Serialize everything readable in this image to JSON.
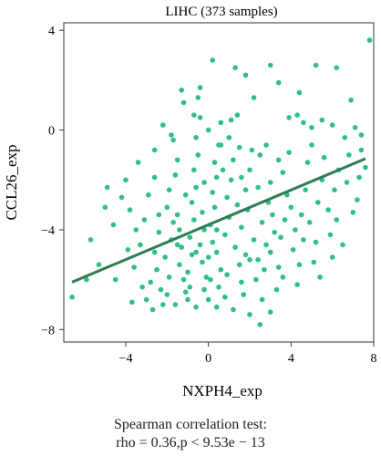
{
  "chart_data": {
    "type": "scatter",
    "title": "LIHC (373 samples)",
    "xlabel": "NXPH4_exp",
    "ylabel": "CCL26_exp",
    "xlim": [
      -7,
      8
    ],
    "ylim": [
      -8.5,
      4.3
    ],
    "xticks": [
      "−4",
      "0",
      "4",
      "8"
    ],
    "xtick_values": [
      -4,
      0,
      4,
      8
    ],
    "yticks": [
      "4",
      "0",
      "−4",
      "−8"
    ],
    "ytick_values": [
      4,
      0,
      -4,
      -8
    ],
    "grid": false,
    "point_color": "#2fbf86",
    "line_color": "#2e7d52",
    "fit_line": {
      "x": [
        -6.6,
        7.6
      ],
      "y": [
        -6.1,
        -1.15
      ]
    },
    "annotation": [
      "Spearman correlation test:",
      "rho = 0.36,p < 9.53e − 13"
    ],
    "points": [
      [
        -6.6,
        -6.7
      ],
      [
        -5.9,
        -6.0
      ],
      [
        -5.3,
        -5.4
      ],
      [
        -4.6,
        -3.8
      ],
      [
        -4.9,
        -2.3
      ],
      [
        -4.0,
        -2.0
      ],
      [
        -3.8,
        -3.2
      ],
      [
        -3.5,
        -4.0
      ],
      [
        -3.3,
        -4.6
      ],
      [
        -3.6,
        -5.5
      ],
      [
        -3.2,
        -6.3
      ],
      [
        -3.0,
        -6.8
      ],
      [
        -2.8,
        -6.1
      ],
      [
        -3.1,
        -3.6
      ],
      [
        -2.9,
        -2.6
      ],
      [
        -2.6,
        -1.9
      ],
      [
        -2.4,
        -4.1
      ],
      [
        -2.6,
        -4.9
      ],
      [
        -2.5,
        -5.6
      ],
      [
        -2.3,
        -6.4
      ],
      [
        -2.2,
        -7.0
      ],
      [
        -2.0,
        -6.6
      ],
      [
        -1.9,
        -5.9
      ],
      [
        -2.1,
        -5.1
      ],
      [
        -1.8,
        -4.4
      ],
      [
        -1.7,
        -3.7
      ],
      [
        -2.0,
        -3.1
      ],
      [
        -1.9,
        -2.4
      ],
      [
        -1.6,
        -1.8
      ],
      [
        -1.5,
        -1.2
      ],
      [
        -1.7,
        -0.4
      ],
      [
        -1.2,
        1.1
      ],
      [
        -1.5,
        -3.4
      ],
      [
        -1.4,
        -4.0
      ],
      [
        -1.3,
        -4.7
      ],
      [
        -1.4,
        -5.4
      ],
      [
        -1.2,
        -6.0
      ],
      [
        -1.1,
        -6.5
      ],
      [
        -1.0,
        -6.8
      ],
      [
        -0.9,
        -6.3
      ],
      [
        -1.0,
        -5.7
      ],
      [
        -0.8,
        -5.0
      ],
      [
        -0.9,
        -4.3
      ],
      [
        -0.7,
        -3.6
      ],
      [
        -0.8,
        -2.9
      ],
      [
        -0.6,
        -2.3
      ],
      [
        -0.7,
        -1.6
      ],
      [
        -0.5,
        -1.0
      ],
      [
        -0.6,
        -0.3
      ],
      [
        -0.4,
        0.5
      ],
      [
        -0.5,
        1.3
      ],
      [
        -0.3,
        -3.3
      ],
      [
        -0.2,
        -4.0
      ],
      [
        -0.4,
        -4.6
      ],
      [
        -0.3,
        -5.3
      ],
      [
        -0.1,
        -5.9
      ],
      [
        -0.2,
        -6.4
      ],
      [
        0.0,
        -6.8
      ],
      [
        0.1,
        -6.0
      ],
      [
        0.0,
        -5.1
      ],
      [
        0.2,
        -4.5
      ],
      [
        0.1,
        -3.8
      ],
      [
        0.3,
        -3.1
      ],
      [
        0.2,
        -2.5
      ],
      [
        0.4,
        -1.9
      ],
      [
        0.3,
        -1.3
      ],
      [
        0.5,
        -0.6
      ],
      [
        0.6,
        0.3
      ],
      [
        0.4,
        -4.9
      ],
      [
        0.6,
        -5.6
      ],
      [
        0.5,
        -6.3
      ],
      [
        0.8,
        -6.7
      ],
      [
        0.9,
        -5.8
      ],
      [
        0.8,
        -4.2
      ],
      [
        1.0,
        -3.5
      ],
      [
        0.9,
        -2.7
      ],
      [
        1.1,
        -2.0
      ],
      [
        1.2,
        -1.2
      ],
      [
        1.0,
        -0.3
      ],
      [
        1.4,
        0.6
      ],
      [
        1.3,
        -4.7
      ],
      [
        1.5,
        -5.4
      ],
      [
        1.6,
        -6.1
      ],
      [
        1.7,
        -6.6
      ],
      [
        1.8,
        -5.0
      ],
      [
        1.6,
        -3.9
      ],
      [
        1.9,
        -3.2
      ],
      [
        1.8,
        -2.4
      ],
      [
        2.0,
        -1.6
      ],
      [
        2.1,
        -0.8
      ],
      [
        2.2,
        -4.4
      ],
      [
        2.4,
        -5.2
      ],
      [
        2.3,
        -6.0
      ],
      [
        2.6,
        -6.8
      ],
      [
        2.5,
        -7.8
      ],
      [
        2.7,
        -5.6
      ],
      [
        2.8,
        -4.6
      ],
      [
        2.6,
        -3.7
      ],
      [
        2.9,
        -2.9
      ],
      [
        3.0,
        -2.1
      ],
      [
        3.1,
        -3.4
      ],
      [
        3.2,
        -4.1
      ],
      [
        3.0,
        -4.9
      ],
      [
        3.4,
        -5.5
      ],
      [
        3.3,
        -6.4
      ],
      [
        3.6,
        -5.9
      ],
      [
        3.5,
        -4.3
      ],
      [
        3.7,
        -3.6
      ],
      [
        3.8,
        -2.6
      ],
      [
        3.6,
        -1.7
      ],
      [
        3.9,
        -0.9
      ],
      [
        4.0,
        -3.1
      ],
      [
        4.2,
        -4.0
      ],
      [
        4.1,
        -4.8
      ],
      [
        4.4,
        -5.4
      ],
      [
        4.3,
        -6.2
      ],
      [
        4.6,
        -4.4
      ],
      [
        4.5,
        -3.4
      ],
      [
        4.7,
        -2.4
      ],
      [
        4.8,
        -1.3
      ],
      [
        5.0,
        -0.6
      ],
      [
        4.9,
        -3.7
      ],
      [
        5.2,
        -4.5
      ],
      [
        5.1,
        -5.3
      ],
      [
        5.4,
        -5.9
      ],
      [
        5.3,
        -2.9
      ],
      [
        5.5,
        -2.0
      ],
      [
        5.6,
        -1.1
      ],
      [
        5.8,
        -3.2
      ],
      [
        5.9,
        -4.2
      ],
      [
        6.0,
        -5.1
      ],
      [
        6.1,
        -2.4
      ],
      [
        6.3,
        -1.6
      ],
      [
        6.2,
        -3.6
      ],
      [
        6.5,
        -4.6
      ],
      [
        6.7,
        -2.1
      ],
      [
        6.8,
        -1.0
      ],
      [
        7.0,
        -3.3
      ],
      [
        7.2,
        -2.8
      ],
      [
        7.3,
        -1.9
      ],
      [
        7.4,
        -0.8
      ],
      [
        7.6,
        -1.5
      ],
      [
        3.9,
        0.5
      ],
      [
        4.3,
        0.6
      ],
      [
        4.6,
        0.3
      ],
      [
        5.0,
        0.1
      ],
      [
        5.5,
        0.4
      ],
      [
        6.0,
        0.2
      ],
      [
        6.6,
        -0.3
      ],
      [
        7.1,
        0.1
      ],
      [
        7.8,
        3.6
      ],
      [
        7.4,
        -0.2
      ],
      [
        6.9,
        1.2
      ],
      [
        6.2,
        2.5
      ],
      [
        5.2,
        2.6
      ],
      [
        4.4,
        1.5
      ],
      [
        3.4,
        1.9
      ],
      [
        3.0,
        2.6
      ],
      [
        1.3,
        2.5
      ],
      [
        1.8,
        2.2
      ],
      [
        2.2,
        1.3
      ],
      [
        0.2,
        2.8
      ],
      [
        -1.3,
        1.6
      ],
      [
        -0.4,
        1.7
      ],
      [
        -0.7,
        0.6
      ],
      [
        -2.2,
        0.2
      ],
      [
        0.6,
        -0.6
      ],
      [
        1.5,
        -0.7
      ],
      [
        2.8,
        -0.6
      ],
      [
        3.4,
        -1.2
      ],
      [
        -2.6,
        -0.8
      ],
      [
        -3.4,
        -1.3
      ],
      [
        -4.2,
        -2.7
      ],
      [
        -5.0,
        -3.1
      ],
      [
        -3.9,
        -4.8
      ],
      [
        -4.5,
        -6.0
      ],
      [
        -3.7,
        -6.9
      ],
      [
        -2.7,
        -7.2
      ],
      [
        -1.6,
        -7.0
      ],
      [
        -0.6,
        -7.1
      ],
      [
        0.4,
        -7.1
      ],
      [
        1.2,
        -7.2
      ],
      [
        2.0,
        -7.4
      ],
      [
        3.0,
        -7.3
      ],
      [
        -5.7,
        -4.4
      ],
      [
        -1.1,
        -2.6
      ],
      [
        -0.2,
        -2.1
      ],
      [
        0.7,
        -1.6
      ],
      [
        1.6,
        -1.9
      ],
      [
        2.4,
        -2.3
      ],
      [
        -1.8,
        -0.2
      ],
      [
        0.0,
        0.0
      ],
      [
        1.1,
        0.4
      ],
      [
        2.5,
        -1.0
      ],
      [
        -2.4,
        -3.4
      ],
      [
        -1.5,
        -4.6
      ],
      [
        -0.6,
        -4.9
      ],
      [
        0.4,
        -4.0
      ],
      [
        1.4,
        -3.0
      ],
      [
        2.0,
        -5.2
      ]
    ]
  }
}
